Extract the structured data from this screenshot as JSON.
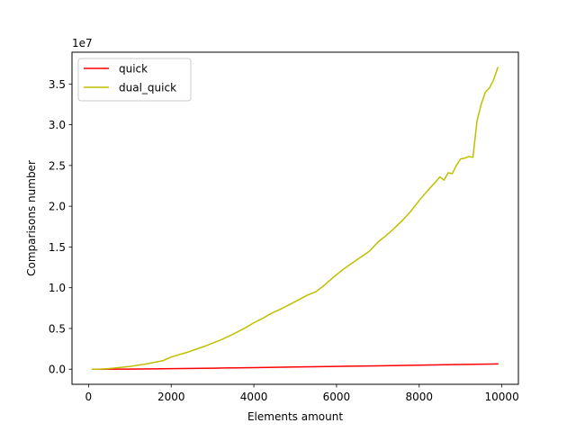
{
  "chart_data": {
    "type": "line",
    "xlabel": "Elements amount",
    "ylabel": "Comparisons number",
    "y_offset_label": "1e7",
    "xlim": [
      -400,
      10400
    ],
    "ylim": [
      -1850000,
      38900000
    ],
    "x_ticks": [
      0,
      2000,
      4000,
      6000,
      8000,
      10000
    ],
    "x_tick_labels": [
      "0",
      "2000",
      "4000",
      "6000",
      "8000",
      "10000"
    ],
    "y_ticks": [
      0,
      5000000,
      10000000,
      15000000,
      20000000,
      25000000,
      30000000,
      35000000
    ],
    "y_tick_labels": [
      "0.0",
      "0.5",
      "1.0",
      "1.5",
      "2.0",
      "2.5",
      "3.0",
      "3.5"
    ],
    "grid": false,
    "legend_position": "top-left",
    "series": [
      {
        "name": "quick",
        "color": "#ff0000",
        "points": [
          [
            100,
            1000
          ],
          [
            1000,
            20000
          ],
          [
            2000,
            70000
          ],
          [
            3000,
            130000
          ],
          [
            4000,
            200000
          ],
          [
            5000,
            270000
          ],
          [
            6000,
            350000
          ],
          [
            7000,
            420000
          ],
          [
            8000,
            500000
          ],
          [
            9000,
            580000
          ],
          [
            9900,
            650000
          ]
        ]
      },
      {
        "name": "dual_quick",
        "color": "#bfbf00",
        "points": [
          [
            100,
            5000
          ],
          [
            300,
            20000
          ],
          [
            500,
            80000
          ],
          [
            700,
            180000
          ],
          [
            1000,
            350000
          ],
          [
            1400,
            650000
          ],
          [
            1800,
            1050000
          ],
          [
            2000,
            1500000
          ],
          [
            2400,
            2100000
          ],
          [
            2800,
            2800000
          ],
          [
            3200,
            3600000
          ],
          [
            3500,
            4300000
          ],
          [
            3800,
            5100000
          ],
          [
            4000,
            5700000
          ],
          [
            4200,
            6200000
          ],
          [
            4400,
            6800000
          ],
          [
            4700,
            7500000
          ],
          [
            5000,
            8300000
          ],
          [
            5300,
            9100000
          ],
          [
            5500,
            9500000
          ],
          [
            5700,
            10300000
          ],
          [
            6000,
            11600000
          ],
          [
            6200,
            12400000
          ],
          [
            6400,
            13100000
          ],
          [
            6600,
            13800000
          ],
          [
            6800,
            14500000
          ],
          [
            7000,
            15600000
          ],
          [
            7200,
            16400000
          ],
          [
            7400,
            17300000
          ],
          [
            7600,
            18300000
          ],
          [
            7800,
            19400000
          ],
          [
            8000,
            20700000
          ],
          [
            8200,
            21900000
          ],
          [
            8400,
            23000000
          ],
          [
            8500,
            23600000
          ],
          [
            8600,
            23200000
          ],
          [
            8700,
            24100000
          ],
          [
            8800,
            24000000
          ],
          [
            8900,
            25000000
          ],
          [
            9000,
            25800000
          ],
          [
            9100,
            25900000
          ],
          [
            9200,
            26100000
          ],
          [
            9300,
            26000000
          ],
          [
            9400,
            30500000
          ],
          [
            9500,
            32500000
          ],
          [
            9600,
            34000000
          ],
          [
            9700,
            34500000
          ],
          [
            9800,
            35500000
          ],
          [
            9900,
            37000000
          ]
        ]
      }
    ]
  }
}
